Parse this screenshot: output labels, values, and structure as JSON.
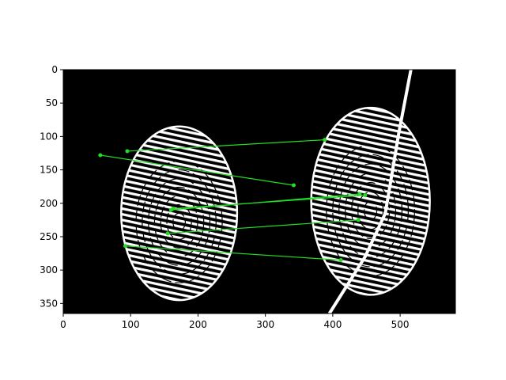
{
  "figure": {
    "background": "#ffffff",
    "image_background": "#000000",
    "ridge_color": "#ffffff",
    "match_color": "#22dd22",
    "boundary_color": "#ffffff"
  },
  "axes": {
    "x_ticks": [
      {
        "value": 0,
        "label": "0"
      },
      {
        "value": 100,
        "label": "100"
      },
      {
        "value": 200,
        "label": "200"
      },
      {
        "value": 300,
        "label": "300"
      },
      {
        "value": 400,
        "label": "400"
      },
      {
        "value": 500,
        "label": "500"
      }
    ],
    "y_ticks": [
      {
        "value": 0,
        "label": "0"
      },
      {
        "value": 50,
        "label": "50"
      },
      {
        "value": 100,
        "label": "100"
      },
      {
        "value": 150,
        "label": "150"
      },
      {
        "value": 200,
        "label": "200"
      },
      {
        "value": 250,
        "label": "250"
      },
      {
        "value": 300,
        "label": "300"
      },
      {
        "value": 350,
        "label": "350"
      }
    ],
    "xlim": [
      0,
      582
    ],
    "ylim": [
      365,
      0
    ]
  },
  "fingerprints": [
    {
      "cx": 172,
      "cy": 215,
      "rx": 86,
      "ry": 130
    },
    {
      "cx": 456,
      "cy": 197,
      "rx": 88,
      "ry": 140
    }
  ],
  "boundary_path": [
    [
      516,
      0
    ],
    [
      498,
      95
    ],
    [
      478,
      215
    ],
    [
      448,
      280
    ],
    [
      395,
      365
    ]
  ],
  "matches": [
    {
      "x1": 95,
      "y1": 122,
      "x2": 388,
      "y2": 105
    },
    {
      "x1": 55,
      "y1": 128,
      "x2": 342,
      "y2": 173
    },
    {
      "x1": 160,
      "y1": 210,
      "x2": 440,
      "y2": 186
    },
    {
      "x1": 163,
      "y1": 208,
      "x2": 448,
      "y2": 188
    },
    {
      "x1": 155,
      "y1": 245,
      "x2": 438,
      "y2": 225
    },
    {
      "x1": 92,
      "y1": 264,
      "x2": 412,
      "y2": 285
    }
  ]
}
